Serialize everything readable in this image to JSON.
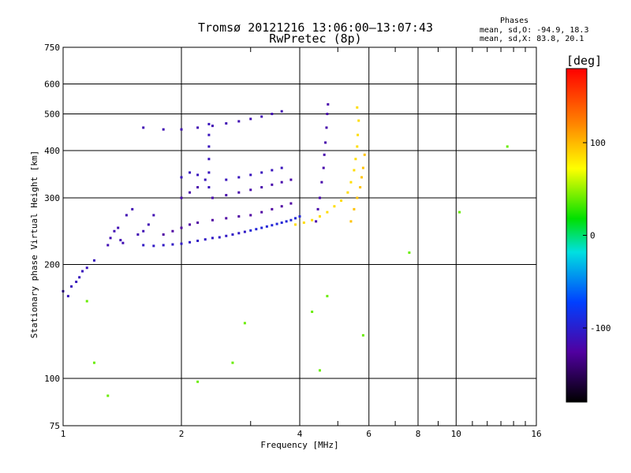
{
  "header": {
    "title": "Tromsø 20121216 13:06:00–13:07:43",
    "subtitle": "RwPretec (8p)"
  },
  "phase_box": {
    "title": "Phases",
    "line_o": "mean, sd,O: -94.9, 18.3",
    "line_x": "mean, sd,X:  83.8, 20.1"
  },
  "colorbar": {
    "unit": "[deg]",
    "range": [
      -180,
      180
    ],
    "ticks": [
      100,
      0,
      -100
    ],
    "tick_labels": [
      "100",
      "0",
      "-100"
    ]
  },
  "chart_data": {
    "type": "scatter",
    "xlabel": "Frequency [MHz]",
    "ylabel": "Stationary phase Virtual Height [km]",
    "xscale": "log",
    "yscale": "log",
    "xlim": [
      1,
      16
    ],
    "ylim": [
      75,
      750
    ],
    "x_ticks": [
      1,
      2,
      4,
      6,
      8,
      10,
      16
    ],
    "x_tick_labels": [
      "1",
      "2",
      "4",
      "6",
      "8",
      "10",
      "16"
    ],
    "y_ticks": [
      75,
      100,
      200,
      300,
      400,
      500,
      600,
      750
    ],
    "y_tick_labels": [
      "75",
      "100",
      "200",
      "300",
      "400",
      "500",
      "600",
      "750"
    ],
    "grid": true,
    "color_meaning": "phase [deg]",
    "traces": [
      {
        "trace": "low-band",
        "phase": -110,
        "points": [
          [
            1.0,
            170
          ],
          [
            1.03,
            165
          ],
          [
            1.05,
            175
          ],
          [
            1.08,
            180
          ],
          [
            1.1,
            185
          ],
          [
            1.12,
            192
          ],
          [
            1.15,
            196
          ],
          [
            1.2,
            205
          ]
        ]
      },
      {
        "trace": "lower-spread",
        "phase": -115,
        "points": [
          [
            1.3,
            225
          ],
          [
            1.32,
            235
          ],
          [
            1.35,
            245
          ],
          [
            1.38,
            250
          ],
          [
            1.4,
            232
          ],
          [
            1.42,
            228
          ],
          [
            1.45,
            270
          ],
          [
            1.5,
            280
          ],
          [
            1.55,
            240
          ],
          [
            1.6,
            245
          ],
          [
            1.65,
            255
          ],
          [
            1.7,
            270
          ]
        ]
      },
      {
        "trace": "O-low",
        "phase": -105,
        "points": [
          [
            1.6,
            225
          ],
          [
            1.7,
            224
          ],
          [
            1.8,
            225
          ],
          [
            1.9,
            226
          ],
          [
            2.0,
            227
          ],
          [
            2.1,
            229
          ],
          [
            2.2,
            231
          ],
          [
            2.3,
            233
          ],
          [
            2.4,
            235
          ],
          [
            2.5,
            236
          ],
          [
            2.6,
            238
          ],
          [
            2.7,
            240
          ],
          [
            2.8,
            242
          ],
          [
            2.9,
            244
          ]
        ]
      },
      {
        "trace": "O-rise",
        "phase": -95,
        "points": [
          [
            3.0,
            246
          ],
          [
            3.1,
            248
          ],
          [
            3.2,
            250
          ],
          [
            3.3,
            252
          ],
          [
            3.4,
            254
          ],
          [
            3.5,
            256
          ],
          [
            3.6,
            258
          ],
          [
            3.7,
            260
          ],
          [
            3.8,
            262
          ],
          [
            3.9,
            265
          ],
          [
            4.0,
            268
          ]
        ]
      },
      {
        "trace": "O-mid",
        "phase": -125,
        "points": [
          [
            1.8,
            240
          ],
          [
            1.9,
            245
          ],
          [
            2.0,
            250
          ],
          [
            2.1,
            255
          ],
          [
            2.2,
            258
          ],
          [
            2.4,
            262
          ],
          [
            2.6,
            265
          ],
          [
            2.8,
            268
          ],
          [
            3.0,
            270
          ],
          [
            3.2,
            275
          ],
          [
            3.4,
            280
          ],
          [
            3.6,
            285
          ],
          [
            3.8,
            290
          ]
        ]
      },
      {
        "trace": "O-upper",
        "phase": -120,
        "points": [
          [
            2.0,
            300
          ],
          [
            2.1,
            310
          ],
          [
            2.2,
            320
          ],
          [
            2.4,
            300
          ],
          [
            2.6,
            305
          ],
          [
            2.8,
            310
          ],
          [
            3.0,
            315
          ],
          [
            3.2,
            320
          ],
          [
            3.4,
            325
          ],
          [
            3.6,
            330
          ],
          [
            3.8,
            335
          ]
        ]
      },
      {
        "trace": "O-top-band",
        "phase": -110,
        "points": [
          [
            2.0,
            340
          ],
          [
            2.1,
            350
          ],
          [
            2.2,
            345
          ],
          [
            2.3,
            335
          ],
          [
            2.6,
            335
          ],
          [
            2.8,
            340
          ],
          [
            3.0,
            345
          ],
          [
            3.2,
            350
          ],
          [
            3.4,
            355
          ],
          [
            3.6,
            360
          ]
        ]
      },
      {
        "trace": "O-cusp",
        "phase": -120,
        "points": [
          [
            4.4,
            260
          ],
          [
            4.45,
            280
          ],
          [
            4.5,
            300
          ],
          [
            4.55,
            330
          ],
          [
            4.6,
            360
          ],
          [
            4.62,
            390
          ],
          [
            4.65,
            420
          ],
          [
            4.68,
            460
          ],
          [
            4.7,
            500
          ],
          [
            4.72,
            530
          ]
        ]
      },
      {
        "trace": "E-layer-upper",
        "phase": -115,
        "points": [
          [
            1.6,
            460
          ],
          [
            1.8,
            455
          ],
          [
            2.0,
            455
          ],
          [
            2.2,
            460
          ],
          [
            2.4,
            465
          ],
          [
            2.6,
            472
          ],
          [
            2.8,
            478
          ],
          [
            3.0,
            485
          ],
          [
            3.2,
            492
          ],
          [
            3.4,
            500
          ],
          [
            3.6,
            508
          ]
        ]
      },
      {
        "trace": "vertical-mid",
        "phase": -110,
        "points": [
          [
            2.35,
            470
          ],
          [
            2.35,
            440
          ],
          [
            2.35,
            410
          ],
          [
            2.35,
            380
          ],
          [
            2.35,
            350
          ],
          [
            2.35,
            320
          ]
        ]
      },
      {
        "trace": "X-trace",
        "phase": 85,
        "points": [
          [
            3.9,
            255
          ],
          [
            4.1,
            258
          ],
          [
            4.3,
            262
          ],
          [
            4.5,
            268
          ],
          [
            4.7,
            275
          ],
          [
            4.9,
            285
          ],
          [
            5.1,
            295
          ],
          [
            5.3,
            310
          ],
          [
            5.4,
            330
          ],
          [
            5.5,
            355
          ],
          [
            5.55,
            380
          ],
          [
            5.6,
            410
          ],
          [
            5.62,
            440
          ],
          [
            5.65,
            480
          ],
          [
            5.6,
            520
          ]
        ]
      },
      {
        "trace": "X-spread",
        "phase": 95,
        "points": [
          [
            5.4,
            260
          ],
          [
            5.5,
            280
          ],
          [
            5.6,
            300
          ],
          [
            5.7,
            320
          ],
          [
            5.75,
            340
          ],
          [
            5.8,
            360
          ],
          [
            5.85,
            390
          ]
        ]
      },
      {
        "trace": "scattered",
        "phase": 40,
        "points": [
          [
            1.15,
            160
          ],
          [
            1.2,
            110
          ],
          [
            1.3,
            90
          ],
          [
            2.2,
            98
          ],
          [
            2.7,
            110
          ],
          [
            2.9,
            140
          ],
          [
            4.3,
            150
          ],
          [
            4.5,
            105
          ],
          [
            4.7,
            165
          ],
          [
            5.8,
            130
          ],
          [
            7.6,
            215
          ],
          [
            10.2,
            275
          ],
          [
            13.5,
            410
          ]
        ]
      }
    ]
  }
}
